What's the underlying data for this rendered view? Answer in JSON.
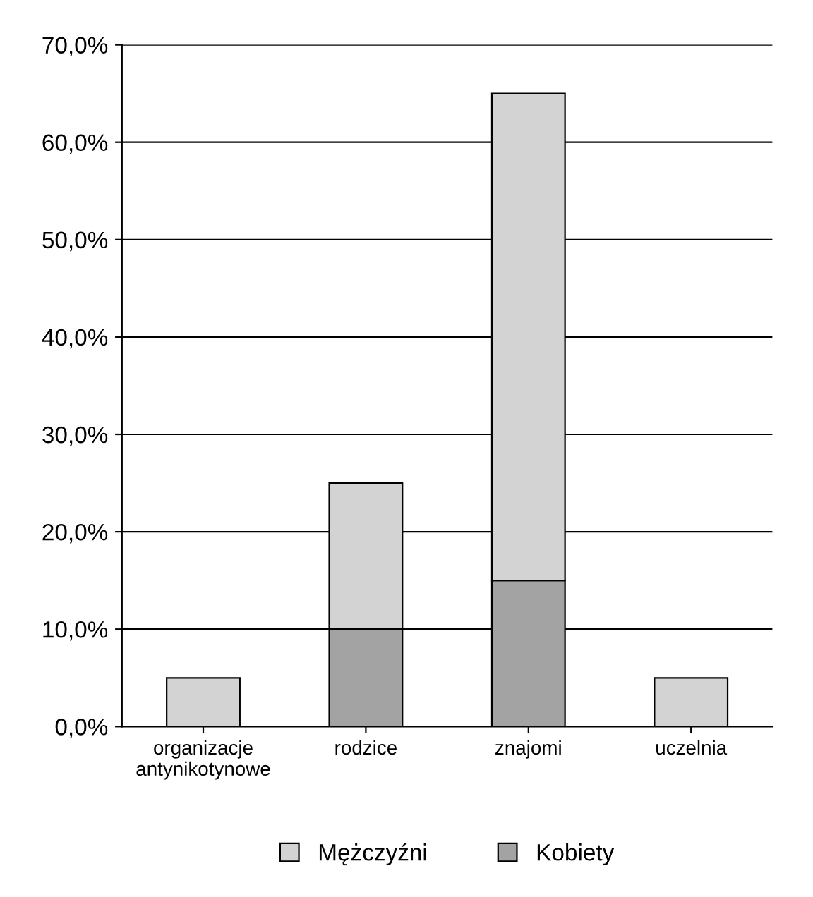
{
  "chart_data": {
    "type": "bar",
    "stacked": true,
    "categories": [
      "organizacje\nantynikotynowe",
      "rodzice",
      "znajomi",
      "uczelnia"
    ],
    "series": [
      {
        "name": "Kobiety",
        "color": "#a3a3a3",
        "values": [
          0,
          10,
          15,
          0
        ]
      },
      {
        "name": "Mężczyźni",
        "color": "#d3d3d3",
        "values": [
          5,
          15,
          50,
          5
        ]
      }
    ],
    "ylim": [
      0,
      70
    ],
    "yticks": [
      {
        "value": 0,
        "label": "0,0%"
      },
      {
        "value": 10,
        "label": "10,0%"
      },
      {
        "value": 20,
        "label": "20,0%"
      },
      {
        "value": 30,
        "label": "30,0%"
      },
      {
        "value": 40,
        "label": "40,0%"
      },
      {
        "value": 50,
        "label": "50,0%"
      },
      {
        "value": 60,
        "label": "60,0%"
      },
      {
        "value": 70,
        "label": "70,0%"
      }
    ],
    "grid": "y",
    "legend": "bottom"
  }
}
